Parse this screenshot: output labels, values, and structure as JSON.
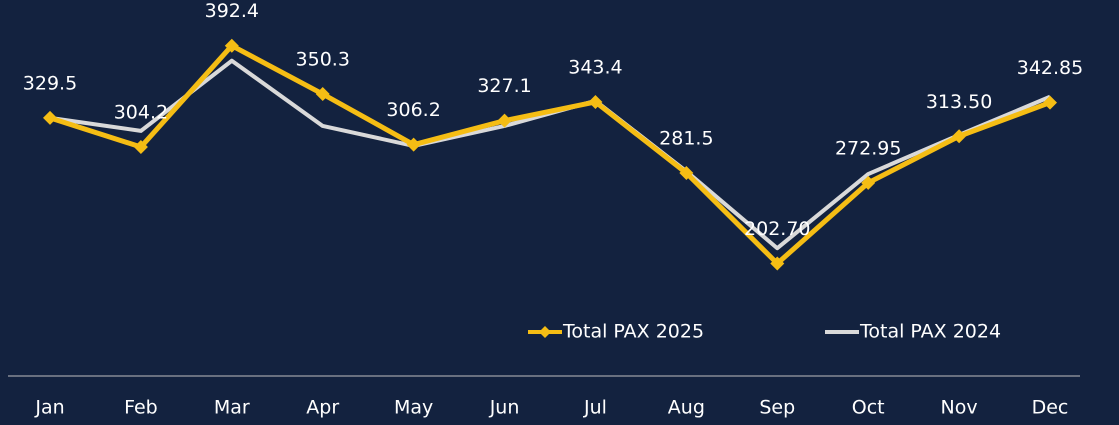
{
  "chart_data": {
    "type": "line",
    "categories": [
      "Jan",
      "Feb",
      "Mar",
      "Apr",
      "May",
      "Jun",
      "Jul",
      "Aug",
      "Sep",
      "Oct",
      "Nov",
      "Dec"
    ],
    "series": [
      {
        "name": "Total PAX 2025",
        "color": "#f5bd14",
        "values": [
          329.5,
          304.2,
          392.4,
          350.3,
          306.2,
          327.1,
          343.4,
          281.5,
          202.7,
          272.95,
          313.5,
          342.85
        ],
        "value_labels": [
          "329.5",
          "304.2",
          "392.4",
          "350.3",
          "306.2",
          "327.1",
          "343.4",
          "281.5",
          "202.70",
          "272.95",
          "313.50",
          "342.85"
        ]
      },
      {
        "name": "Total PAX 2024",
        "color": "#d9d9d9",
        "values": [
          329.5,
          318.2,
          379.3,
          322.5,
          305.1,
          322.5,
          344.4,
          283,
          216,
          280.6,
          314.7,
          347.9
        ]
      }
    ],
    "ylim": [
      150,
      420
    ]
  }
}
